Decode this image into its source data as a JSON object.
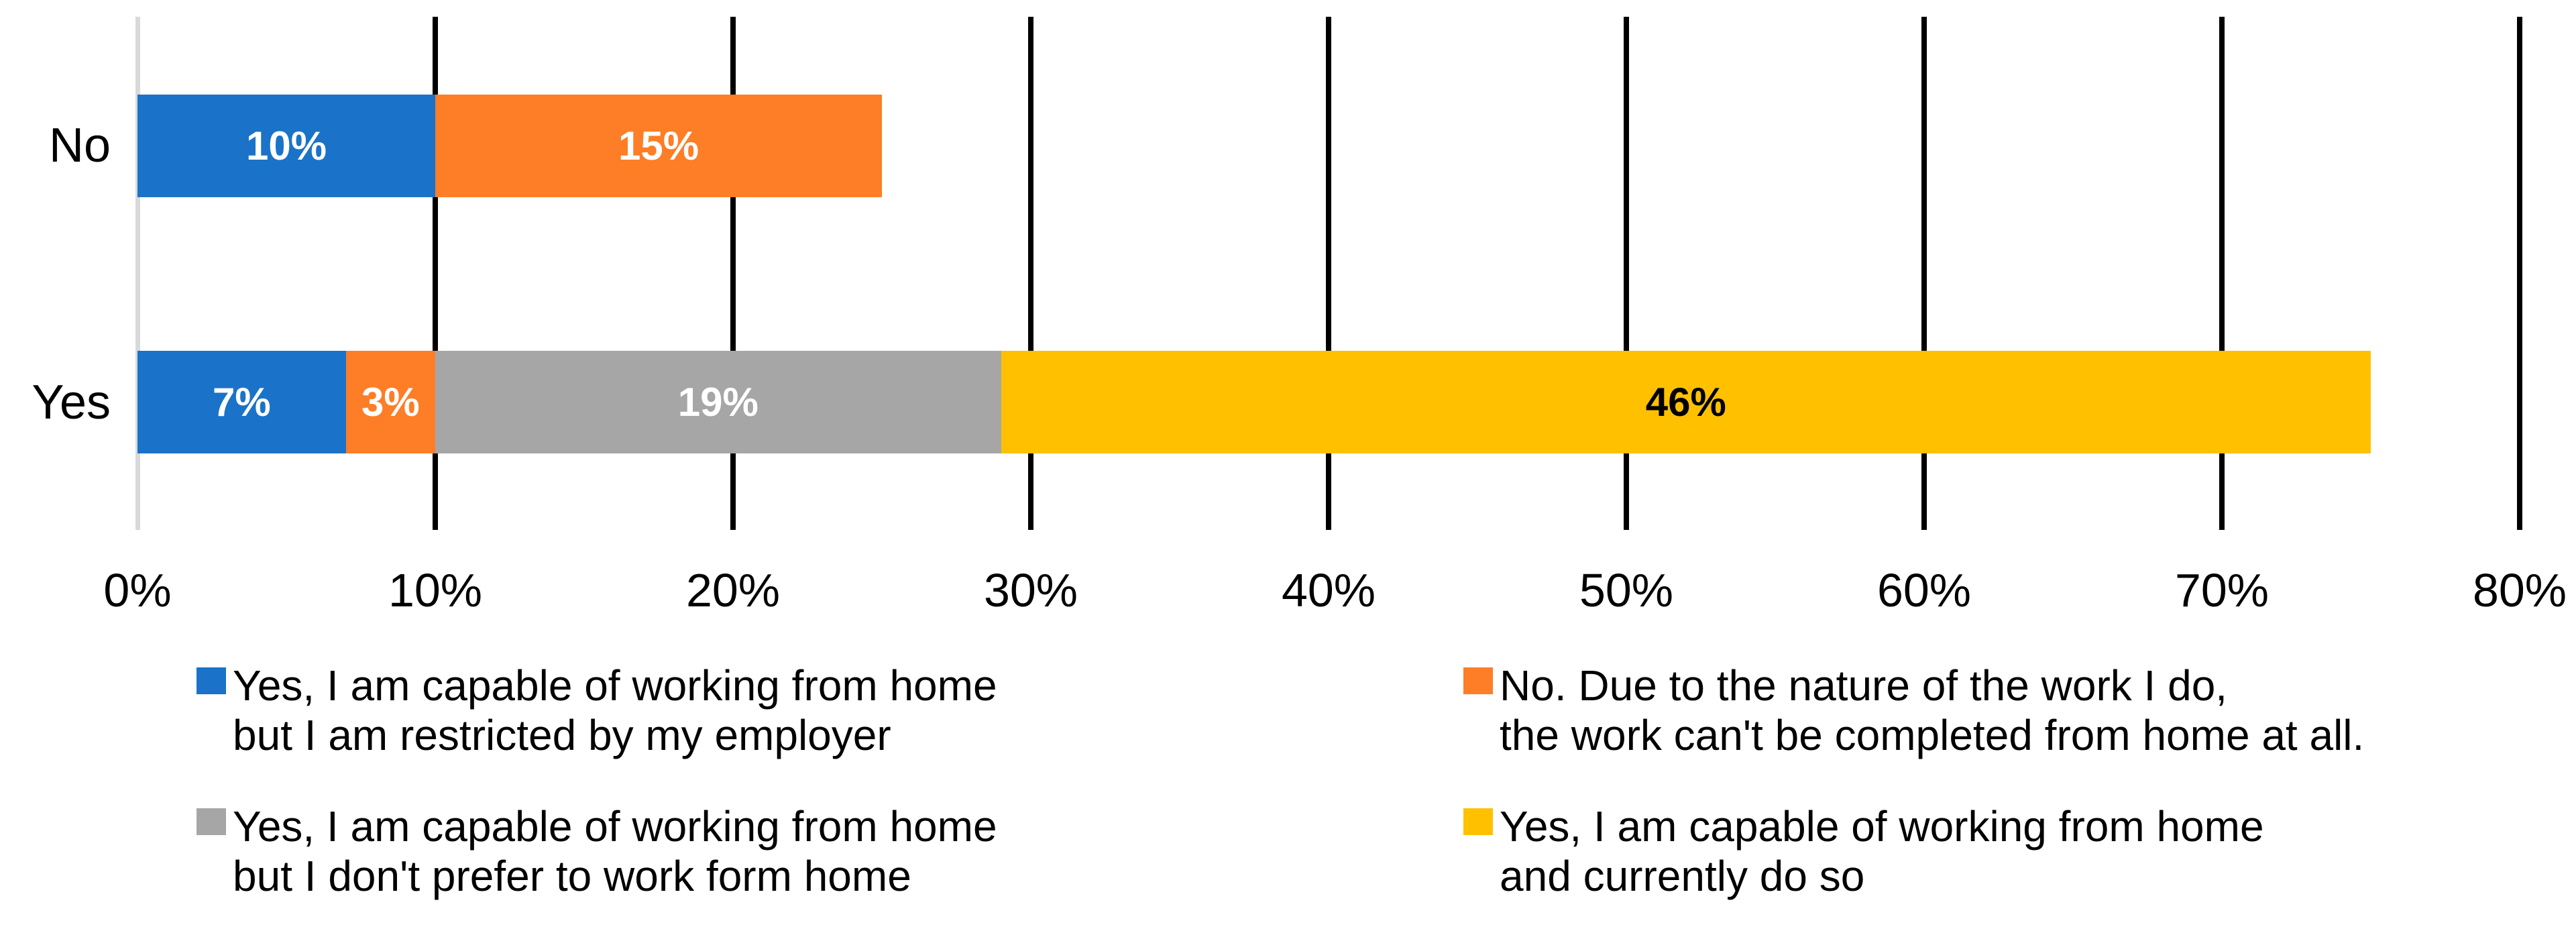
{
  "chart_data": {
    "type": "bar",
    "orientation": "horizontal",
    "stacked": true,
    "title": "",
    "categories": [
      "No",
      "Yes"
    ],
    "series": [
      {
        "name": "Yes, I am capable of working from home but I am restricted by my employer",
        "color": "#1A73C8",
        "values": [
          10,
          7
        ],
        "data_label_color": "#FFFFFF"
      },
      {
        "name": "No. Due to the nature of the work I do, the work can't be completed from home at all.",
        "color": "#FD7E26",
        "values": [
          15,
          3
        ],
        "data_label_color": "#FFFFFF"
      },
      {
        "name": "Yes, I am capable of working from home but I don't prefer to work form home",
        "color": "#A6A6A6",
        "values": [
          0,
          19
        ],
        "data_label_color": "#FFFFFF"
      },
      {
        "name": "Yes, I am capable of working from home and currently do so",
        "color": "#FFC000",
        "values": [
          0,
          46
        ],
        "data_label_color": "#000000"
      }
    ],
    "x_axis": {
      "min": 0,
      "max": 80,
      "tick_interval": 10,
      "tick_labels": [
        "0%",
        "10%",
        "20%",
        "30%",
        "40%",
        "50%",
        "60%",
        "70%",
        "80%"
      ]
    },
    "data_label_suffix": "%",
    "gridline_color": "#000000",
    "axis_line_color": "#D9D9D9",
    "grid": "vertical",
    "legend_position": "bottom"
  },
  "legend": {
    "items": [
      {
        "color": "#1A73C8",
        "lines": [
          "Yes, I am capable of working from home",
          "but I am restricted by my employer"
        ]
      },
      {
        "color": "#FD7E26",
        "lines": [
          "No. Due to the nature of the work I do,",
          " the work can't be completed from home at all."
        ]
      },
      {
        "color": "#A6A6A6",
        "lines": [
          "Yes, I am capable of working from home",
          "but I don't prefer to work form home"
        ]
      },
      {
        "color": "#FFC000",
        "lines": [
          "Yes, I am capable of working from home",
          " and currently do so"
        ]
      }
    ]
  }
}
